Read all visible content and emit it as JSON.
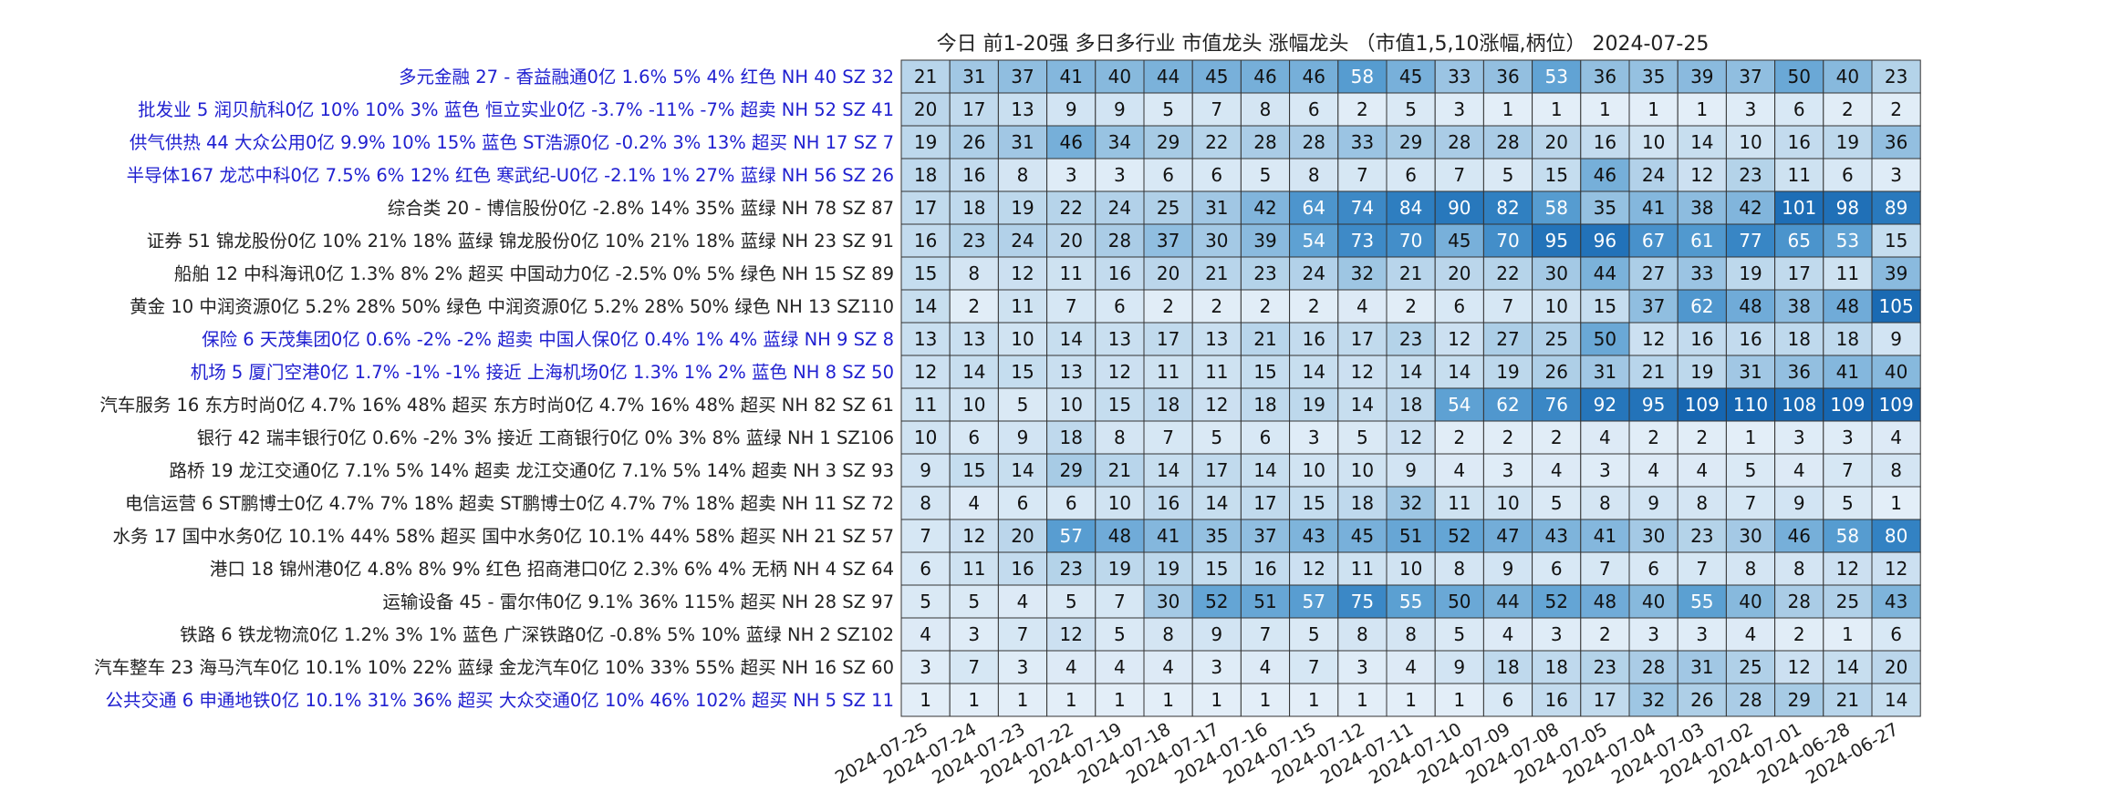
{
  "chart_data": {
    "type": "heatmap",
    "title": "今日 前1-20强  多日多行业 市值龙头 涨幅龙头 （市值1,5,10涨幅,柄位） 2024-07-25",
    "x": [
      "2024-07-25",
      "2024-07-24",
      "2024-07-23",
      "2024-07-22",
      "2024-07-19",
      "2024-07-18",
      "2024-07-17",
      "2024-07-16",
      "2024-07-15",
      "2024-07-12",
      "2024-07-11",
      "2024-07-10",
      "2024-07-09",
      "2024-07-08",
      "2024-07-05",
      "2024-07-04",
      "2024-07-03",
      "2024-07-02",
      "2024-07-01",
      "2024-06-28",
      "2024-06-27"
    ],
    "y": [
      "多元金融 27 - 香益融通0亿 1.6% 5% 4% 红色  NH 40 SZ 32",
      "批发业  5 润贝航科0亿 10% 10% 3% 蓝色  恒立实业0亿 -3.7% -11% -7% 超卖  NH 52 SZ 41",
      "供气供热 44 大众公用0亿 9.9% 10% 15% 蓝色  ST浩源0亿 -0.2% 3% 13% 超买  NH 17 SZ  7",
      "半导体167 龙芯中科0亿 7.5% 6% 12% 红色  寒武纪-U0亿 -2.1% 1% 27% 蓝绿  NH 56 SZ 26",
      "综合类 20 - 博信股份0亿 -2.8% 14% 35% 蓝绿  NH 78 SZ 87",
      "证券 51 锦龙股份0亿 10% 21% 18% 蓝绿  锦龙股份0亿 10% 21% 18% 蓝绿  NH 23 SZ 91",
      "船舶 12 中科海讯0亿 1.3% 8% 2% 超买  中国动力0亿 -2.5% 0% 5% 绿色  NH 15 SZ 89",
      "黄金 10 中润资源0亿 5.2% 28% 50% 绿色  中润资源0亿 5.2% 28% 50% 绿色  NH 13 SZ110",
      "保险  6 天茂集团0亿 0.6% -2% -2% 超卖  中国人保0亿 0.4% 1% 4% 蓝绿  NH  9 SZ  8",
      "机场  5 厦门空港0亿 1.7% -1% -1% 接近  上海机场0亿 1.3% 1% 2% 蓝色  NH  8 SZ 50",
      "汽车服务 16 东方时尚0亿 4.7% 16% 48% 超买  东方时尚0亿 4.7% 16% 48% 超买  NH 82 SZ 61",
      "银行 42 瑞丰银行0亿 0.6% -2% 3% 接近  工商银行0亿 0% 3% 8% 蓝绿  NH  1 SZ106",
      "路桥 19 龙江交通0亿 7.1% 5% 14% 超卖  龙江交通0亿 7.1% 5% 14% 超卖  NH  3 SZ 93",
      "电信运营  6 ST鹏博士0亿 4.7% 7% 18% 超卖  ST鹏博士0亿 4.7% 7% 18% 超卖  NH 11 SZ 72",
      "水务 17 国中水务0亿 10.1% 44% 58% 超买  国中水务0亿 10.1% 44% 58% 超买  NH 21 SZ 57",
      "港口 18 锦州港0亿 4.8% 8% 9% 红色  招商港口0亿 2.3% 6% 4% 无柄  NH  4 SZ 64",
      "运输设备 45 - 雷尔伟0亿 9.1% 36% 115% 超买  NH 28 SZ 97",
      "铁路  6 铁龙物流0亿 1.2% 3% 1% 蓝色  广深铁路0亿 -0.8% 5% 10% 蓝绿  NH  2 SZ102",
      "汽车整车 23 海马汽车0亿 10.1% 10% 22% 蓝绿  金龙汽车0亿 10% 33% 55% 超买  NH 16 SZ 60",
      "公共交通  6 申通地铁0亿 10.1% 31% 36% 超买  大众交通0亿 10% 46% 102% 超买  NH  5 SZ 11"
    ],
    "y_label_colors": [
      "#1f1fd0",
      "#1f1fd0",
      "#1f1fd0",
      "#1f1fd0",
      "#222222",
      "#222222",
      "#222222",
      "#222222",
      "#1f1fd0",
      "#1f1fd0",
      "#222222",
      "#222222",
      "#222222",
      "#222222",
      "#222222",
      "#222222",
      "#222222",
      "#222222",
      "#222222",
      "#1f1fd0"
    ],
    "values": [
      [
        21,
        31,
        37,
        41,
        40,
        44,
        45,
        46,
        46,
        58,
        45,
        33,
        36,
        53,
        36,
        35,
        39,
        37,
        50,
        40,
        23
      ],
      [
        20,
        17,
        13,
        9,
        9,
        5,
        7,
        8,
        6,
        2,
        5,
        3,
        1,
        1,
        1,
        1,
        1,
        3,
        6,
        2,
        2
      ],
      [
        19,
        26,
        31,
        46,
        34,
        29,
        22,
        28,
        28,
        33,
        29,
        28,
        28,
        20,
        16,
        10,
        14,
        10,
        16,
        19,
        36
      ],
      [
        18,
        16,
        8,
        3,
        3,
        6,
        6,
        5,
        8,
        7,
        6,
        7,
        5,
        15,
        46,
        24,
        12,
        23,
        11,
        6,
        3
      ],
      [
        17,
        18,
        19,
        22,
        24,
        25,
        31,
        42,
        64,
        74,
        84,
        90,
        82,
        58,
        35,
        41,
        38,
        42,
        101,
        98,
        89
      ],
      [
        16,
        23,
        24,
        20,
        28,
        37,
        30,
        39,
        54,
        73,
        70,
        45,
        70,
        95,
        96,
        67,
        61,
        77,
        65,
        53,
        15
      ],
      [
        15,
        8,
        12,
        11,
        16,
        20,
        21,
        23,
        24,
        32,
        21,
        20,
        22,
        30,
        44,
        27,
        33,
        19,
        17,
        11,
        39
      ],
      [
        14,
        2,
        11,
        7,
        6,
        2,
        2,
        2,
        2,
        4,
        2,
        6,
        7,
        10,
        15,
        37,
        62,
        48,
        38,
        48,
        105
      ],
      [
        13,
        13,
        10,
        14,
        13,
        17,
        13,
        21,
        16,
        17,
        23,
        12,
        27,
        25,
        50,
        12,
        16,
        16,
        18,
        18,
        9
      ],
      [
        12,
        14,
        15,
        13,
        12,
        11,
        11,
        15,
        14,
        12,
        14,
        14,
        19,
        26,
        31,
        21,
        19,
        31,
        36,
        41,
        40
      ],
      [
        11,
        10,
        5,
        10,
        15,
        18,
        12,
        18,
        19,
        14,
        18,
        54,
        62,
        76,
        92,
        95,
        109,
        110,
        108,
        109,
        109
      ],
      [
        10,
        6,
        9,
        18,
        8,
        7,
        5,
        6,
        3,
        5,
        12,
        2,
        2,
        2,
        4,
        2,
        2,
        1,
        3,
        3,
        4
      ],
      [
        9,
        15,
        14,
        29,
        21,
        14,
        17,
        14,
        10,
        10,
        9,
        4,
        3,
        4,
        3,
        4,
        4,
        5,
        4,
        7,
        8
      ],
      [
        8,
        4,
        6,
        6,
        10,
        16,
        14,
        17,
        15,
        18,
        32,
        11,
        10,
        5,
        8,
        9,
        8,
        7,
        9,
        5,
        1
      ],
      [
        7,
        12,
        20,
        57,
        48,
        41,
        35,
        37,
        43,
        45,
        51,
        52,
        47,
        43,
        41,
        30,
        23,
        30,
        46,
        58,
        80
      ],
      [
        6,
        11,
        16,
        23,
        19,
        19,
        15,
        16,
        12,
        11,
        10,
        8,
        9,
        6,
        7,
        6,
        7,
        8,
        8,
        12,
        12
      ],
      [
        5,
        5,
        4,
        5,
        7,
        30,
        52,
        51,
        57,
        75,
        55,
        50,
        44,
        52,
        48,
        40,
        55,
        40,
        28,
        25,
        43
      ],
      [
        4,
        3,
        7,
        12,
        5,
        8,
        9,
        7,
        5,
        8,
        8,
        5,
        4,
        3,
        2,
        3,
        3,
        4,
        2,
        1,
        6
      ],
      [
        3,
        7,
        3,
        4,
        4,
        4,
        3,
        4,
        7,
        3,
        4,
        9,
        18,
        18,
        23,
        28,
        31,
        25,
        12,
        14,
        20
      ],
      [
        1,
        1,
        1,
        1,
        1,
        1,
        1,
        1,
        1,
        1,
        1,
        1,
        6,
        16,
        17,
        32,
        26,
        28,
        29,
        21,
        14
      ]
    ],
    "colorscale": [
      "#e3eef8",
      "#a9cce6",
      "#5a9fd2",
      "#2f7fc1",
      "#1565b0"
    ],
    "value_range": [
      1,
      110
    ],
    "grid": true,
    "legend": "none"
  }
}
